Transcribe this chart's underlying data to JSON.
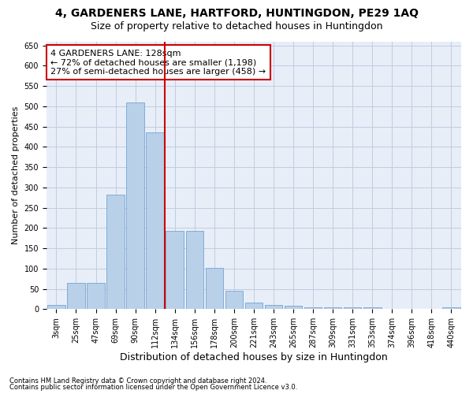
{
  "title_line1": "4, GARDENERS LANE, HARTFORD, HUNTINGDON, PE29 1AQ",
  "title_line2": "Size of property relative to detached houses in Huntingdon",
  "xlabel": "Distribution of detached houses by size in Huntingdon",
  "ylabel": "Number of detached properties",
  "categories": [
    "3sqm",
    "25sqm",
    "47sqm",
    "69sqm",
    "90sqm",
    "112sqm",
    "134sqm",
    "156sqm",
    "178sqm",
    "200sqm",
    "221sqm",
    "243sqm",
    "265sqm",
    "287sqm",
    "309sqm",
    "331sqm",
    "353sqm",
    "374sqm",
    "396sqm",
    "418sqm",
    "440sqm"
  ],
  "values": [
    10,
    65,
    65,
    282,
    510,
    435,
    192,
    192,
    101,
    46,
    16,
    11,
    8,
    5,
    5,
    5,
    5,
    0,
    0,
    0,
    5
  ],
  "bar_color": "#b8d0e8",
  "bar_edge_color": "#6699cc",
  "bar_width": 0.9,
  "vline_x": 5.5,
  "vline_color": "#cc0000",
  "annotation_text": "4 GARDENERS LANE: 128sqm\n← 72% of detached houses are smaller (1,198)\n27% of semi-detached houses are larger (458) →",
  "annotation_box_color": "#ffffff",
  "annotation_box_edge": "#cc0000",
  "ylim": [
    0,
    660
  ],
  "yticks": [
    0,
    50,
    100,
    150,
    200,
    250,
    300,
    350,
    400,
    450,
    500,
    550,
    600,
    650
  ],
  "footnote1": "Contains HM Land Registry data © Crown copyright and database right 2024.",
  "footnote2": "Contains public sector information licensed under the Open Government Licence v3.0.",
  "bg_color": "#ffffff",
  "plot_bg_color": "#e8eef8",
  "grid_color": "#c0cce0",
  "title1_fontsize": 10,
  "title2_fontsize": 9,
  "xlabel_fontsize": 9,
  "ylabel_fontsize": 8,
  "tick_fontsize": 7,
  "annotation_fontsize": 8,
  "footnote_fontsize": 6
}
